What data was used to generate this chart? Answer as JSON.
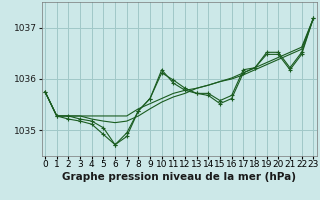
{
  "xlabel": "Graphe pression niveau de la mer (hPa)",
  "bg_color": "#cce8e8",
  "grid_color": "#a0c8c8",
  "line_color": "#1a5c20",
  "marker_color": "#1a5c20",
  "x_ticks": [
    0,
    1,
    2,
    3,
    4,
    5,
    6,
    7,
    8,
    9,
    10,
    11,
    12,
    13,
    14,
    15,
    16,
    17,
    18,
    19,
    20,
    21,
    22,
    23
  ],
  "y_ticks": [
    1035,
    1036,
    1037
  ],
  "ylim": [
    1034.5,
    1037.5
  ],
  "xlim": [
    -0.3,
    23.3
  ],
  "series": [
    [
      1035.75,
      1035.28,
      1035.28,
      1035.22,
      1035.18,
      1035.05,
      1034.72,
      1034.95,
      1035.38,
      1035.62,
      1036.12,
      1035.98,
      1035.82,
      1035.72,
      1035.72,
      1035.58,
      1035.68,
      1036.18,
      1036.22,
      1036.52,
      1036.52,
      1036.22,
      1036.52,
      1037.18
    ],
    [
      1035.75,
      1035.28,
      1035.28,
      1035.28,
      1035.22,
      1035.18,
      1035.15,
      1035.18,
      1035.28,
      1035.42,
      1035.55,
      1035.65,
      1035.72,
      1035.82,
      1035.88,
      1035.95,
      1036.02,
      1036.12,
      1036.22,
      1036.32,
      1036.42,
      1036.52,
      1036.62,
      1037.18
    ],
    [
      1035.75,
      1035.28,
      1035.22,
      1035.18,
      1035.12,
      1034.92,
      1034.72,
      1034.88,
      1035.38,
      1035.62,
      1036.18,
      1035.92,
      1035.78,
      1035.72,
      1035.68,
      1035.52,
      1035.62,
      1036.12,
      1036.22,
      1036.48,
      1036.48,
      1036.18,
      1036.48,
      1037.18
    ],
    [
      1035.75,
      1035.28,
      1035.28,
      1035.28,
      1035.28,
      1035.28,
      1035.28,
      1035.28,
      1035.42,
      1035.52,
      1035.62,
      1035.72,
      1035.78,
      1035.82,
      1035.88,
      1035.95,
      1036.0,
      1036.08,
      1036.18,
      1036.28,
      1036.38,
      1036.48,
      1036.58,
      1037.18
    ]
  ],
  "tick_fontsize": 6.5,
  "label_fontsize": 7.5,
  "label_fontweight": "bold"
}
